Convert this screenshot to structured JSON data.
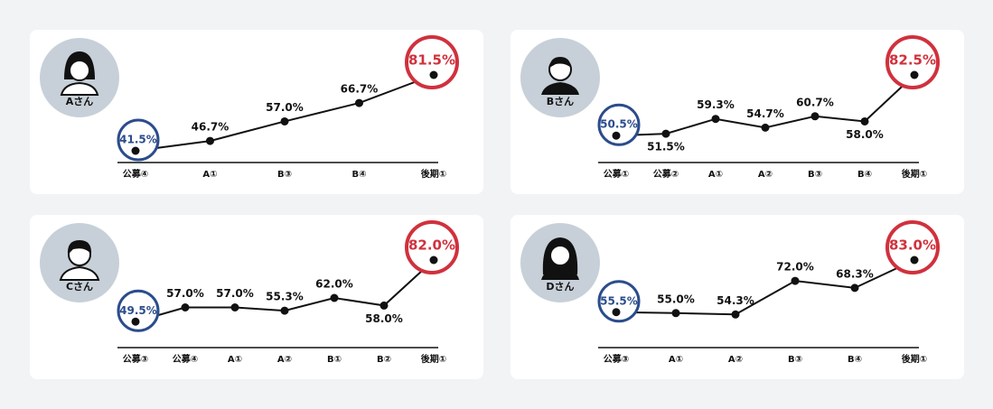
{
  "chart_data": [
    {
      "type": "line",
      "title": "Aさん",
      "categories": [
        "公募④",
        "A①",
        "B③",
        "B④",
        "後期①"
      ],
      "values": [
        41.5,
        46.7,
        57.0,
        66.7,
        81.5
      ],
      "value_labels": [
        "41.5%",
        "46.7%",
        "57.0%",
        "66.7%",
        "81.5%"
      ],
      "color": "#111111",
      "first_color": "#2b4c8c",
      "last_color": "#d0313d"
    },
    {
      "type": "line",
      "title": "Bさん",
      "categories": [
        "公募①",
        "公募②",
        "A①",
        "A②",
        "B③",
        "B④",
        "後期①"
      ],
      "values": [
        50.5,
        51.5,
        59.3,
        54.7,
        60.7,
        58.0,
        82.5
      ],
      "value_labels": [
        "50.5%",
        "51.5%",
        "59.3%",
        "54.7%",
        "60.7%",
        "58.0%",
        "82.5%"
      ],
      "color": "#111111",
      "first_color": "#2b4c8c",
      "last_color": "#d0313d"
    },
    {
      "type": "line",
      "title": "Cさん",
      "categories": [
        "公募③",
        "公募④",
        "A①",
        "A②",
        "B①",
        "B②",
        "後期①"
      ],
      "values": [
        49.5,
        57.0,
        57.0,
        55.3,
        62.0,
        58.0,
        82.0
      ],
      "value_labels": [
        "49.5%",
        "57.0%",
        "57.0%",
        "55.3%",
        "62.0%",
        "58.0%",
        "82.0%"
      ],
      "color": "#111111",
      "first_color": "#2b4c8c",
      "last_color": "#d0313d"
    },
    {
      "type": "line",
      "title": "Dさん",
      "categories": [
        "公募③",
        "A①",
        "A②",
        "B③",
        "B④",
        "後期①"
      ],
      "values": [
        55.5,
        55.0,
        54.3,
        72.0,
        68.3,
        83.0
      ],
      "value_labels": [
        "55.5%",
        "55.0%",
        "54.3%",
        "72.0%",
        "68.3%",
        "83.0%"
      ],
      "color": "#111111",
      "first_color": "#2b4c8c",
      "last_color": "#d0313d"
    }
  ]
}
